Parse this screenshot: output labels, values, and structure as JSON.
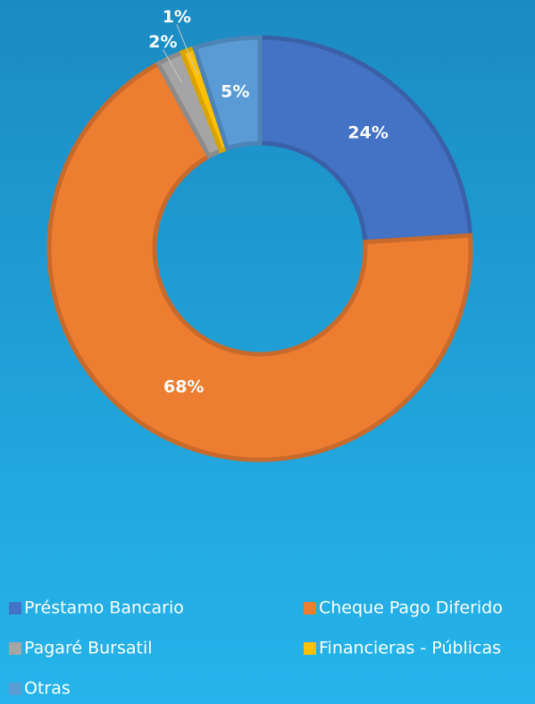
{
  "chart_data": {
    "type": "donut",
    "categories": [
      "Préstamo Bancario",
      "Cheque Pago Diferido",
      "Pagaré Bursatil",
      "Financieras - Públicas",
      "Otras"
    ],
    "values": [
      24,
      68,
      2,
      1,
      5
    ],
    "value_labels": [
      "24%",
      "68%",
      "2%",
      "1%",
      "5%"
    ],
    "colors": [
      "#4472c4",
      "#ed7d31",
      "#a5a5a5",
      "#ffc000",
      "#5b9bd5"
    ],
    "legend": "bottom"
  }
}
